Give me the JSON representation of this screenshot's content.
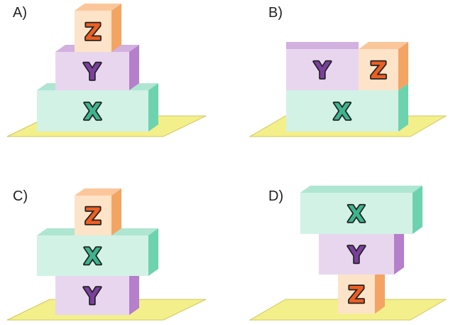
{
  "colors": {
    "floor": "#f3ef8a",
    "floor_edge": "#cfc860",
    "X": {
      "front": "#d2f2e6",
      "top": "#aee6d2",
      "side": "#6cd3ae",
      "letter": "#3db48e"
    },
    "Y": {
      "front": "#e8d6ef",
      "top": "#d2b0e0",
      "side": "#b57fcb",
      "letter": "#7b3f9e"
    },
    "Z": {
      "front": "#fde3c8",
      "top": "#fbc79a",
      "side": "#f3a463",
      "letter": "#ec5f23"
    }
  },
  "options": [
    {
      "label": "A)",
      "stack_bottom_to_top": [
        "X",
        "Y",
        "Z"
      ]
    },
    {
      "label": "B)",
      "bottom": "X",
      "top_left": "Y",
      "top_right": "Z"
    },
    {
      "label": "C)",
      "stack_bottom_to_top": [
        "Y",
        "X",
        "Z"
      ]
    },
    {
      "label": "D)",
      "stack_bottom_to_top": [
        "Z",
        "Y",
        "X"
      ]
    }
  ]
}
